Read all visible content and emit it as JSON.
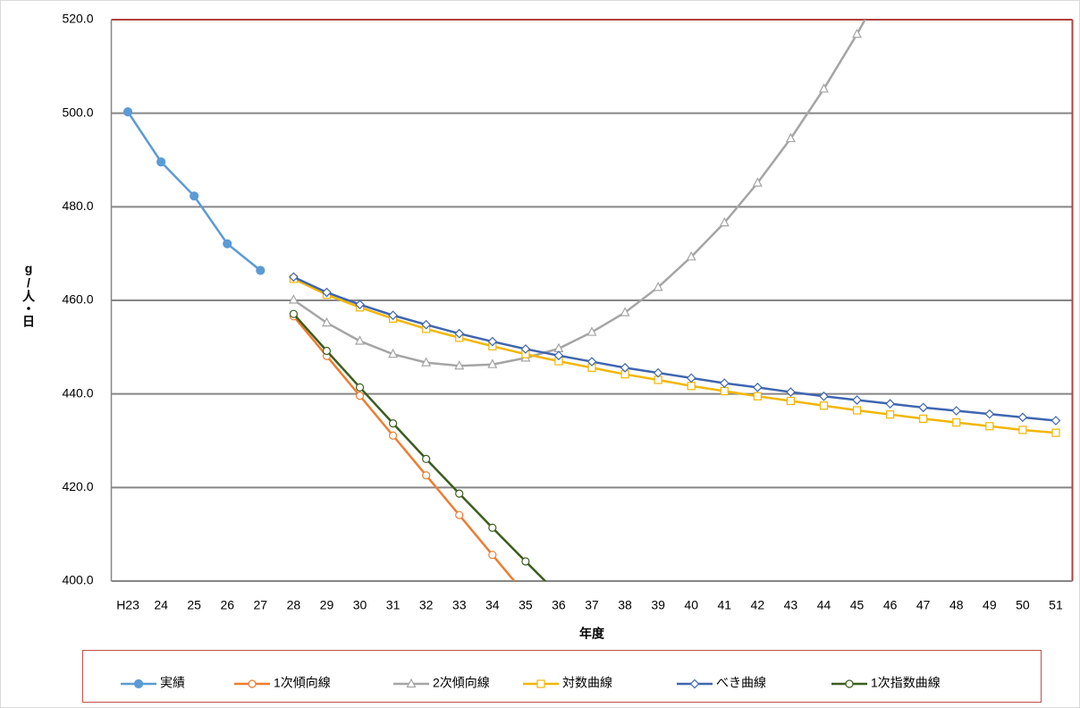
{
  "chart_data": {
    "type": "line",
    "x_label": "年度",
    "y_label": "g/人・日",
    "categories": [
      "H23",
      "24",
      "25",
      "26",
      "27",
      "28",
      "29",
      "30",
      "31",
      "32",
      "33",
      "34",
      "35",
      "36",
      "37",
      "38",
      "39",
      "40",
      "41",
      "42",
      "43",
      "44",
      "45",
      "46",
      "47",
      "48",
      "49",
      "50",
      "51"
    ],
    "ylim": [
      400,
      520
    ],
    "yticks": [
      {
        "value": 400,
        "label": "400.0"
      },
      {
        "value": 420,
        "label": "420.0"
      },
      {
        "value": 440,
        "label": "440.0"
      },
      {
        "value": 460,
        "label": "460.0"
      },
      {
        "value": 480,
        "label": "480.0"
      },
      {
        "value": 500,
        "label": "500.0"
      },
      {
        "value": 520,
        "label": "520.0"
      }
    ],
    "grid": true,
    "series": [
      {
        "name": "実績",
        "color": "#5b9bd5",
        "marker": "circle",
        "values": [
          500.3,
          489.6,
          482.3,
          472.1,
          466.4,
          null,
          null,
          null,
          null,
          null,
          null,
          null,
          null,
          null,
          null,
          null,
          null,
          null,
          null,
          null,
          null,
          null,
          null,
          null,
          null,
          null,
          null,
          null,
          null
        ]
      },
      {
        "name": "1次傾向線",
        "color": "#ed7d31",
        "marker": "circle-open",
        "values": [
          null,
          null,
          null,
          null,
          null,
          456.6,
          448.1,
          439.6,
          431.1,
          422.6,
          414.1,
          405.6,
          397.1,
          null,
          null,
          null,
          null,
          null,
          null,
          null,
          null,
          null,
          null,
          null,
          null,
          null,
          null,
          null,
          null
        ]
      },
      {
        "name": "2次傾向線",
        "color": "#a5a5a5",
        "marker": "triangle-open",
        "values": [
          null,
          null,
          null,
          null,
          null,
          460.1,
          455.2,
          451.3,
          448.5,
          446.7,
          446.0,
          446.3,
          447.7,
          449.7,
          453.2,
          457.4,
          462.8,
          469.3,
          476.6,
          485.1,
          494.6,
          505.2,
          516.9,
          529.7,
          null,
          null,
          null,
          null,
          null
        ]
      },
      {
        "name": "対数曲線",
        "color": "#f2b600",
        "marker": "square-open",
        "values": [
          null,
          null,
          null,
          null,
          null,
          464.6,
          461.2,
          458.5,
          456.1,
          453.9,
          452.0,
          450.2,
          448.5,
          447.0,
          445.6,
          444.2,
          443.0,
          441.7,
          440.6,
          439.5,
          438.5,
          437.5,
          436.5,
          435.6,
          434.7,
          433.9,
          433.1,
          432.3,
          431.7
        ]
      },
      {
        "name": "べき曲線",
        "color": "#3f66b0",
        "marker": "diamond-open",
        "values": [
          null,
          null,
          null,
          null,
          null,
          465.0,
          461.7,
          459.1,
          456.8,
          454.8,
          452.9,
          451.2,
          449.6,
          448.2,
          446.9,
          445.6,
          444.5,
          443.4,
          442.3,
          441.4,
          440.4,
          439.5,
          438.7,
          437.9,
          437.1,
          436.4,
          435.7,
          435.0,
          434.3
        ]
      },
      {
        "name": "1次指数曲線",
        "color": "#3b5e1e",
        "marker": "circle-open",
        "values": [
          null,
          null,
          null,
          null,
          null,
          457.1,
          449.2,
          441.4,
          433.7,
          426.1,
          418.7,
          411.4,
          404.2,
          397.1,
          null,
          null,
          null,
          null,
          null,
          null,
          null,
          null,
          null,
          null,
          null,
          null,
          null,
          null,
          null
        ]
      }
    ]
  }
}
